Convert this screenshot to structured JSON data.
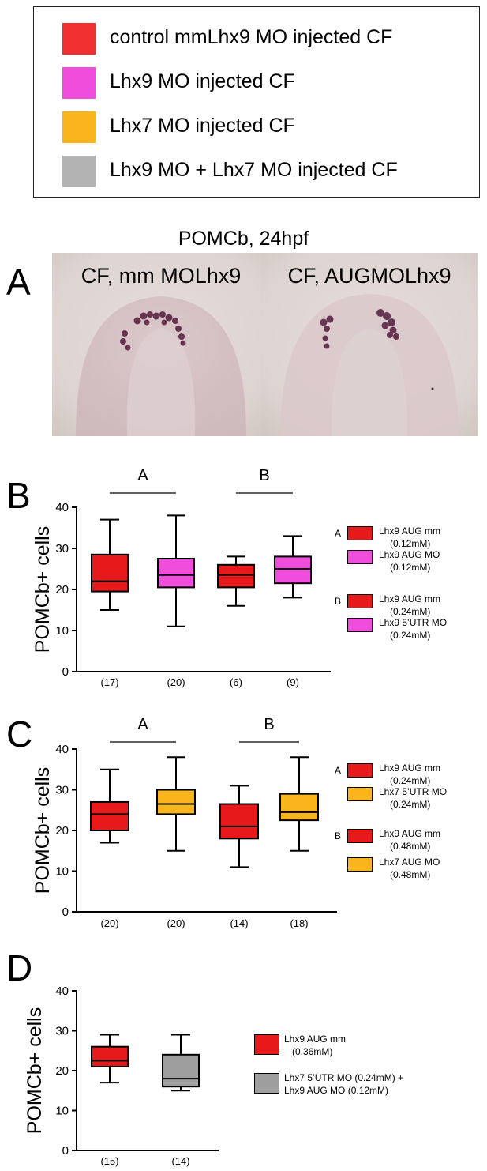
{
  "legend": {
    "items": [
      {
        "label": "control mmLhx9  MO injected CF",
        "color": "#f03030"
      },
      {
        "label": "Lhx9 MO injected CF",
        "color": "#f04ddc"
      },
      {
        "label": "Lhx7 MO injected CF",
        "color": "#fab51c"
      },
      {
        "label": "Lhx9 MO + Lhx7 MO injected CF",
        "color": "#b3b3b3"
      }
    ]
  },
  "panel_a": {
    "letter": "A",
    "title": "POMCb, 24hpf",
    "images": [
      {
        "label": "CF, mm MOLhx9"
      },
      {
        "label": "CF, AUGMOLhx9"
      }
    ]
  },
  "chart_data": [
    {
      "type": "box",
      "panel": "B",
      "ylabel": "POMCb+ cells",
      "ylim": [
        0,
        40
      ],
      "yticks": [
        0,
        10,
        20,
        30,
        40
      ],
      "groups": [
        {
          "label": "A",
          "members": [
            0,
            1
          ]
        },
        {
          "label": "B",
          "members": [
            2,
            3
          ]
        }
      ],
      "boxes": [
        {
          "n": "(17)",
          "color": "#e8191b",
          "min": 15,
          "q1": 19.5,
          "median": 22,
          "q3": 28.5,
          "max": 37
        },
        {
          "n": "(20)",
          "color": "#f04ddc",
          "min": 11,
          "q1": 20.5,
          "median": 23.5,
          "q3": 27.5,
          "max": 38
        },
        {
          "n": "(6)",
          "color": "#e8191b",
          "min": 16,
          "q1": 20.5,
          "median": 23.5,
          "q3": 26,
          "max": 28
        },
        {
          "n": "(9)",
          "color": "#f04ddc",
          "min": 18,
          "q1": 21.5,
          "median": 25,
          "q3": 28,
          "max": 33
        }
      ],
      "legend": [
        {
          "group": "A",
          "color": "#e8191b",
          "lines": [
            "Lhx9 AUG mm",
            "(0.12mM)"
          ]
        },
        {
          "group": "",
          "color": "#f04ddc",
          "lines": [
            "Lhx9 AUG MO",
            "(0.12mM)"
          ]
        },
        {
          "group": "B",
          "color": "#e8191b",
          "lines": [
            "Lhx9 AUG mm",
            "(0.24mM)"
          ]
        },
        {
          "group": "",
          "color": "#f04ddc",
          "lines": [
            "Lhx9 5’UTR MO",
            "(0.24mM)"
          ]
        }
      ]
    },
    {
      "type": "box",
      "panel": "C",
      "ylabel": "POMCb+ cells",
      "ylim": [
        0,
        40
      ],
      "yticks": [
        0,
        10,
        20,
        30,
        40
      ],
      "groups": [
        {
          "label": "A",
          "members": [
            0,
            1
          ]
        },
        {
          "label": "B",
          "members": [
            2,
            3
          ]
        }
      ],
      "boxes": [
        {
          "n": "(20)",
          "color": "#e8191b",
          "min": 17,
          "q1": 20,
          "median": 24,
          "q3": 27,
          "max": 35
        },
        {
          "n": "(20)",
          "color": "#fab51c",
          "min": 15,
          "q1": 24,
          "median": 26.5,
          "q3": 30,
          "max": 38
        },
        {
          "n": "(14)",
          "color": "#e8191b",
          "min": 11,
          "q1": 18,
          "median": 21,
          "q3": 26.5,
          "max": 31
        },
        {
          "n": "(18)",
          "color": "#fab51c",
          "min": 15,
          "q1": 22.5,
          "median": 24.5,
          "q3": 29,
          "max": 38
        }
      ],
      "legend": [
        {
          "group": "A",
          "color": "#e8191b",
          "lines": [
            "Lhx9 AUG mm",
            "(0.24mM)"
          ]
        },
        {
          "group": "",
          "color": "#fab51c",
          "lines": [
            "Lhx7 5’UTR MO",
            "(0.24mM)"
          ]
        },
        {
          "group": "B",
          "color": "#e8191b",
          "lines": [
            "Lhx9 AUG mm",
            "(0.48mM)"
          ]
        },
        {
          "group": "",
          "color": "#fab51c",
          "lines": [
            "Lhx7 AUG MO",
            "(0.48mM)"
          ]
        }
      ]
    },
    {
      "type": "box",
      "panel": "D",
      "ylabel": "POMCb+ cells",
      "ylim": [
        0,
        40
      ],
      "yticks": [
        0,
        10,
        20,
        30,
        40
      ],
      "groups": [],
      "boxes": [
        {
          "n": "(15)",
          "color": "#e8191b",
          "min": 17,
          "q1": 21,
          "median": 22.5,
          "q3": 26,
          "max": 29
        },
        {
          "n": "(14)",
          "color": "#9e9e9e",
          "min": 15,
          "q1": 16,
          "median": 18,
          "q3": 24,
          "max": 29
        }
      ],
      "legend": [
        {
          "group": "",
          "color": "#e8191b",
          "lines": [
            "Lhx9 AUG mm",
            "(0.36mM)"
          ]
        },
        {
          "group": "",
          "color": "#9e9e9e",
          "lines": [
            "Lhx7 5’UTR MO (0.24mM) +",
            "Lhx9 AUG MO (0.12mM)"
          ]
        }
      ]
    }
  ]
}
